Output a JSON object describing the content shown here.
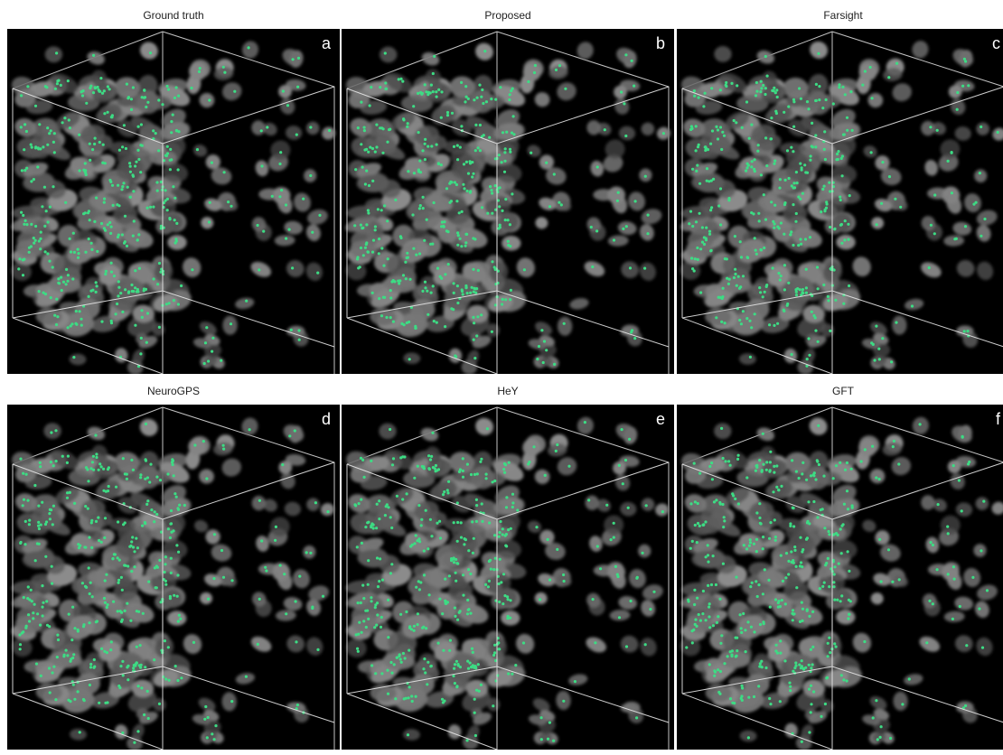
{
  "panels": [
    {
      "title": "Ground truth",
      "letter": "a"
    },
    {
      "title": "Proposed",
      "letter": "b"
    },
    {
      "title": "Farsight",
      "letter": "c"
    },
    {
      "title": "NeuroGPS",
      "letter": "d"
    },
    {
      "title": "HeY",
      "letter": "e"
    },
    {
      "title": "GFT",
      "letter": "f"
    }
  ],
  "colors": {
    "background": "#000000",
    "cell": "#7a7a7a",
    "marker": "#3ddc84",
    "box_edge": "#e6e6e6"
  }
}
